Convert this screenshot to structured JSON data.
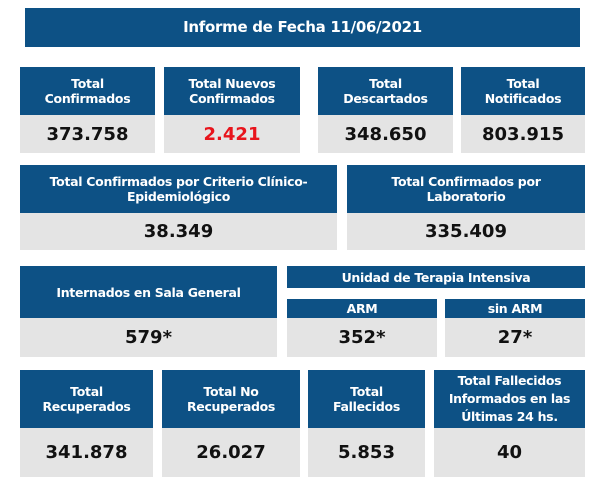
{
  "title": "Informe de Fecha 11/06/2021",
  "row1": [
    {
      "label": "Total\nConfirmados",
      "value": "373.758"
    },
    {
      "label": "Total Nuevos\nConfirmados",
      "value": "2.421"
    },
    {
      "label": "Total\nDescartados",
      "value": "348.650"
    },
    {
      "label": "Total\nNotificados",
      "value": "803.915"
    }
  ],
  "row2": [
    {
      "label": "Total Confirmados por Criterio Clínico-\nEpidemiológico",
      "value": "38.349"
    },
    {
      "label": "Total Confirmados por\nLaboratorio",
      "value": "335.409"
    }
  ],
  "sala": {
    "label": "Internados en Sala General",
    "value": "579*"
  },
  "uti": {
    "label": "Unidad de Terapia Intensiva",
    "arm": {
      "label": "ARM",
      "value": "352*"
    },
    "sin_arm": {
      "label": "sin ARM",
      "value": "27*"
    }
  },
  "row4": [
    {
      "label": "Total\nRecuperados",
      "value": "341.878"
    },
    {
      "label": "Total No\nRecuperados",
      "value": "26.027"
    },
    {
      "label": "Total\nFallecidos",
      "value": "5.853"
    },
    {
      "label": "Total Fallecidos\nInformados en las\nÚltimas 24 hs.",
      "value": "40"
    }
  ],
  "colors": {
    "header": "#0d5185",
    "value_bg": "#e4e4e4",
    "highlight": "#e8141c"
  }
}
